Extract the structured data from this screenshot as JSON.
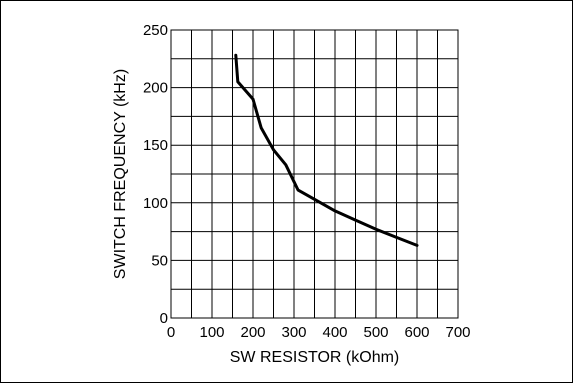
{
  "chart_data": {
    "type": "line",
    "title": "",
    "xlabel": "SW RESISTOR (kOhm)",
    "ylabel": "SWITCH FREQUENCY (kHz)",
    "xlim": [
      0,
      700
    ],
    "ylim": [
      0,
      250
    ],
    "x_tick_labels": [
      "0",
      "100",
      "200",
      "300",
      "400",
      "500",
      "600",
      "700"
    ],
    "y_tick_labels": [
      "0",
      "50",
      "100",
      "150",
      "200",
      "250"
    ],
    "x_minor_step": 50,
    "y_minor_step": 25,
    "grid": true,
    "legend": "none",
    "line_color": "#000000",
    "series": [
      {
        "x": [
          158,
          163,
          200,
          220,
          250,
          280,
          310,
          350,
          400,
          450,
          500,
          550,
          600
        ],
        "y": [
          228,
          205,
          190,
          165,
          146,
          133,
          111,
          103,
          93,
          85,
          77,
          70,
          63
        ]
      }
    ]
  }
}
